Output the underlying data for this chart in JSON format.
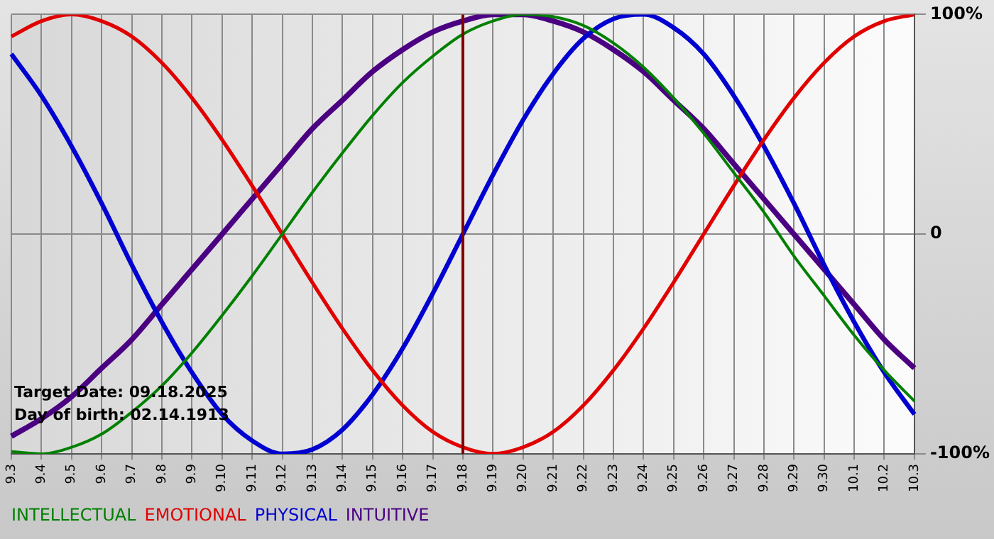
{
  "chart_data": {
    "type": "line",
    "categories": [
      "9.3",
      "9.4",
      "9.5",
      "9.6",
      "9.7",
      "9.8",
      "9.9",
      "9.10",
      "9.11",
      "9.12",
      "9.13",
      "9.14",
      "9.15",
      "9.16",
      "9.17",
      "9.18",
      "9.19",
      "9.20",
      "9.21",
      "9.22",
      "9.23",
      "9.24",
      "9.25",
      "9.26",
      "9.27",
      "9.28",
      "9.29",
      "9.30",
      "10.1",
      "10.2",
      "10.3"
    ],
    "series": [
      {
        "name": "INTELLECTUAL",
        "color": "#008000",
        "values": [
          -99,
          -100,
          -97,
          -91,
          -81,
          -69,
          -54,
          -37,
          -19,
          0,
          19,
          37,
          54,
          69,
          81,
          91,
          97,
          100,
          99,
          95,
          87,
          76,
          62,
          46,
          28,
          10,
          -10,
          -28,
          -46,
          -62,
          -76
        ]
      },
      {
        "name": "EMOTIONAL",
        "color": "#e00000",
        "values": [
          90,
          97,
          100,
          97,
          90,
          78,
          62,
          43,
          22,
          0,
          -22,
          -43,
          -62,
          -78,
          -90,
          -97,
          -100,
          -97,
          -90,
          -78,
          -62,
          -43,
          -22,
          0,
          22,
          43,
          62,
          78,
          90,
          97,
          100
        ]
      },
      {
        "name": "PHYSICAL",
        "color": "#0000d0",
        "values": [
          82,
          63,
          40,
          14,
          -14,
          -40,
          -63,
          -82,
          -94,
          -100,
          -98,
          -89,
          -73,
          -52,
          -27,
          0,
          27,
          52,
          73,
          89,
          98,
          100,
          94,
          82,
          63,
          40,
          14,
          -14,
          -40,
          -63,
          -82
        ]
      },
      {
        "name": "INTUITIVE",
        "color": "#4b0082",
        "values": [
          -92,
          -84,
          -74,
          -61,
          -48,
          -32,
          -16,
          0,
          16,
          32,
          48,
          61,
          74,
          84,
          92,
          97,
          100,
          100,
          97,
          92,
          84,
          74,
          61,
          48,
          32,
          16,
          0,
          -16,
          -32,
          -48,
          -61
        ]
      }
    ],
    "ylim": [
      -100,
      100
    ],
    "yticks": [
      {
        "value": -100,
        "label": "-100%"
      },
      0,
      {
        "value": 100,
        "label": "100%"
      }
    ],
    "ref_lines": [
      {
        "axis": "x",
        "value": "9.18",
        "label": null,
        "color": "#800000"
      }
    ],
    "annotations": [
      "Target Date: 09.18.2025",
      "Day of birth: 02.14.1913"
    ],
    "grid": true,
    "legend": "bottom",
    "marker": "none",
    "line_style": "solid"
  }
}
